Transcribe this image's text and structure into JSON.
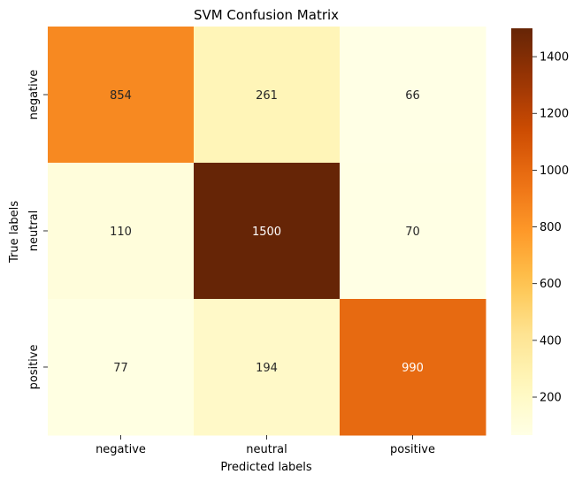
{
  "chart_data": {
    "type": "heatmap",
    "title": "SVM Confusion Matrix",
    "xlabel": "Predicted labels",
    "ylabel": "True labels",
    "x_categories": [
      "negative",
      "neutral",
      "positive"
    ],
    "y_categories": [
      "negative",
      "neutral",
      "positive"
    ],
    "values": [
      [
        854,
        261,
        66
      ],
      [
        110,
        1500,
        70
      ],
      [
        77,
        194,
        990
      ]
    ],
    "colormap": "YlOrBr",
    "color_range": [
      66,
      1500
    ],
    "colorbar_ticks": [
      200,
      400,
      600,
      800,
      1000,
      1200,
      1400
    ]
  }
}
